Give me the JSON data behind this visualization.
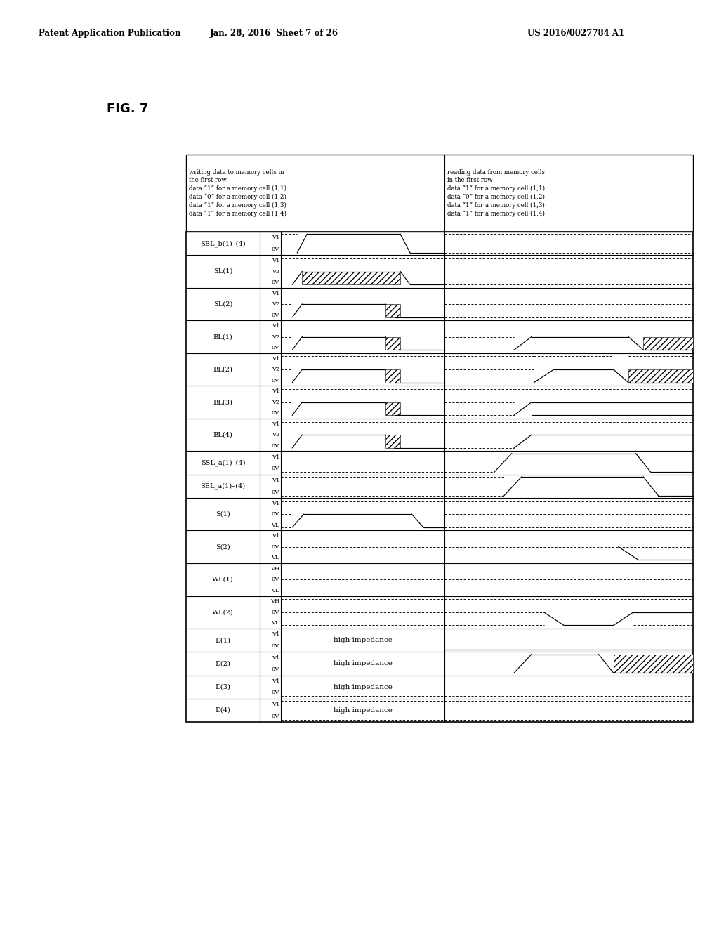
{
  "title_left": "Patent Application Publication",
  "title_center": "Jan. 28, 2016  Sheet 7 of 26",
  "title_right": "US 2016/0027784 A1",
  "fig_label": "FIG. 7",
  "bg_color": "#ffffff"
}
